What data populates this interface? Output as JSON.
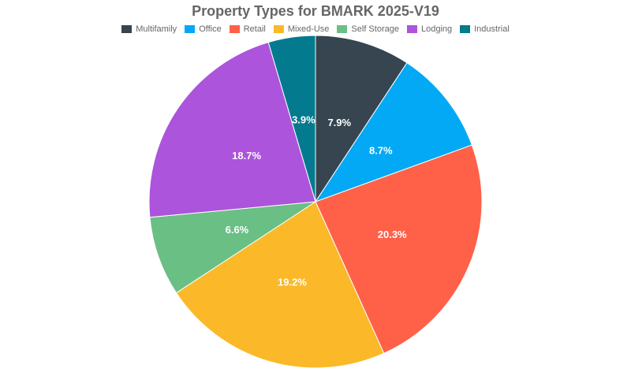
{
  "chart_data": {
    "type": "pie",
    "title": "Property Types for BMARK 2025-V19",
    "legend_position": "top",
    "categories": [
      "Multifamily",
      "Office",
      "Retail",
      "Mixed-Use",
      "Self Storage",
      "Lodging",
      "Industrial"
    ],
    "values": [
      7.9,
      8.7,
      20.3,
      19.2,
      6.6,
      18.7,
      3.9
    ],
    "labels": [
      "7.9%",
      "8.7%",
      "20.3%",
      "19.2%",
      "6.6%",
      "18.7%",
      "3.9%"
    ],
    "colors": [
      "#36454f",
      "#03a9f4",
      "#ff6048",
      "#fbb829",
      "#6abf85",
      "#ac54dc",
      "#047a8f"
    ]
  }
}
